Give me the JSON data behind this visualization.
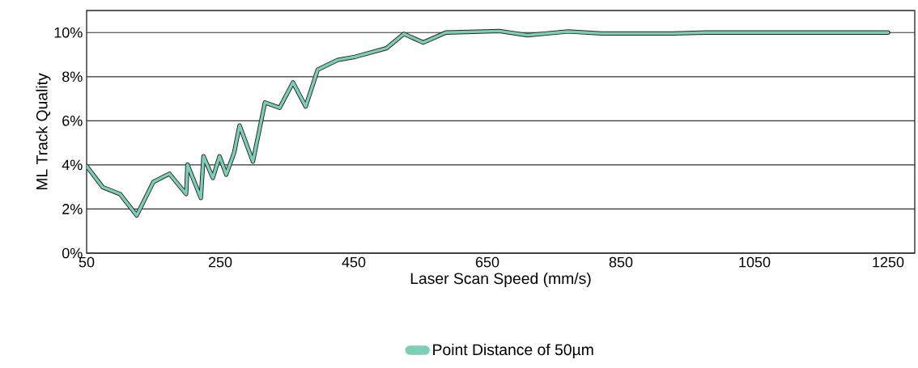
{
  "chart_data": {
    "type": "line",
    "xlabel": "Laser Scan Speed (mm/s)",
    "ylabel": "ML Track Quality",
    "xlim": [
      50,
      1290
    ],
    "ylim": [
      0,
      11
    ],
    "xticks": [
      50,
      250,
      450,
      650,
      850,
      1050,
      1250
    ],
    "yticks": [
      {
        "value": 0,
        "label": "0%"
      },
      {
        "value": 2,
        "label": "2%"
      },
      {
        "value": 4,
        "label": "4%"
      },
      {
        "value": 6,
        "label": "6%"
      },
      {
        "value": 8,
        "label": "8%"
      },
      {
        "value": 10,
        "label": "10%"
      }
    ],
    "grid": "y",
    "legend": "bottom",
    "marker": "none",
    "line_style": "solid",
    "series": [
      {
        "name": "Point Distance of 50µm",
        "color": "#7ccfb6",
        "x": [
          50,
          74,
          100,
          125,
          150,
          174,
          199,
          201,
          221,
          225,
          239,
          249,
          259,
          271,
          279,
          299,
          317,
          339,
          359,
          378,
          396,
          426,
          452,
          499,
          525,
          554,
          588,
          668,
          710,
          771,
          821,
          928,
          977,
          1250
        ],
        "values": [
          3.95,
          2.99,
          2.68,
          1.71,
          3.23,
          3.6,
          2.68,
          4.02,
          2.5,
          4.39,
          3.41,
          4.39,
          3.56,
          4.57,
          5.79,
          4.15,
          6.83,
          6.59,
          7.74,
          6.65,
          8.32,
          8.76,
          8.9,
          9.29,
          9.94,
          9.55,
          10.0,
          10.07,
          9.88,
          10.05,
          9.96,
          9.96,
          10.0,
          10.0
        ]
      }
    ]
  }
}
